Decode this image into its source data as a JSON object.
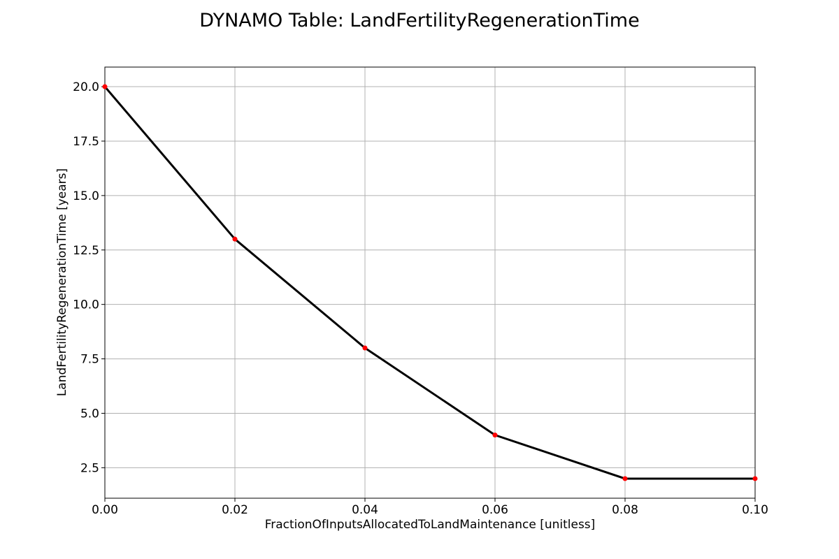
{
  "chart_data": {
    "type": "line",
    "title": "DYNAMO Table: LandFertilityRegenerationTime",
    "xlabel": "FractionOfInputsAllocatedToLandMaintenance [unitless]",
    "ylabel": "LandFertilityRegenerationTime [years]",
    "xlim": [
      0.0,
      0.1
    ],
    "ylim": [
      1.1,
      20.9
    ],
    "grid": true,
    "x_ticks": [
      0.0,
      0.02,
      0.04,
      0.06,
      0.08,
      0.1
    ],
    "x_tick_labels": [
      "0.00",
      "0.02",
      "0.04",
      "0.06",
      "0.08",
      "0.10"
    ],
    "y_ticks": [
      2.5,
      5.0,
      7.5,
      10.0,
      12.5,
      15.0,
      17.5,
      20.0
    ],
    "y_tick_labels": [
      "2.5",
      "5.0",
      "7.5",
      "10.0",
      "12.5",
      "15.0",
      "17.5",
      "20.0"
    ],
    "series": [
      {
        "x": [
          0.0,
          0.02,
          0.04,
          0.06,
          0.08,
          0.1
        ],
        "y": [
          20,
          13,
          8,
          4,
          2,
          2
        ],
        "line_color": "#000000",
        "marker_color": "#ff0000"
      }
    ]
  }
}
